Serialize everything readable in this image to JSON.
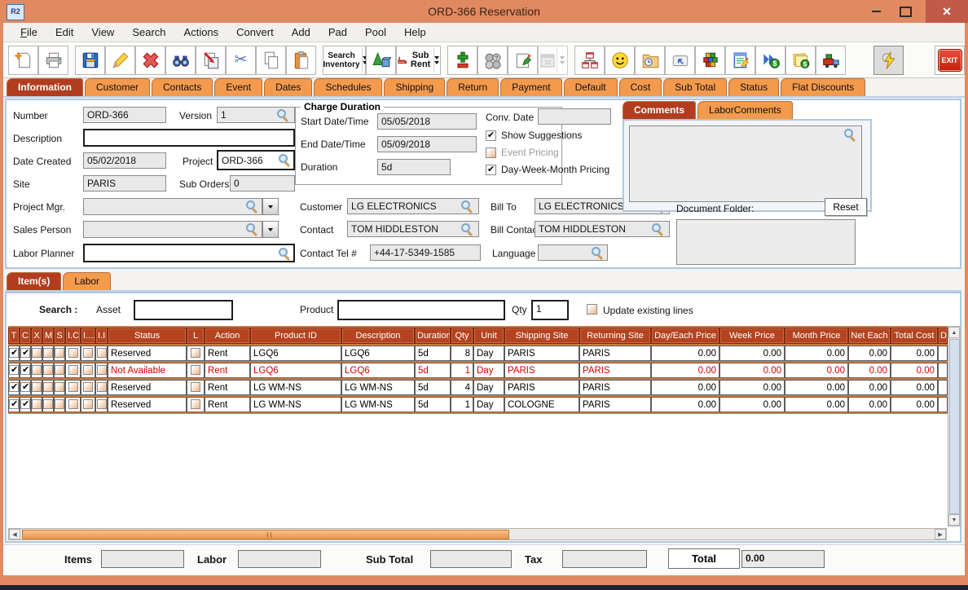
{
  "window": {
    "title": "ORD-366 Reservation",
    "icon_text": "R2",
    "controls": {
      "minimize": "minimize",
      "maximize": "maximize",
      "close": "close"
    }
  },
  "menu": {
    "items": [
      {
        "label": "File",
        "underline_first": true
      },
      {
        "label": "Edit"
      },
      {
        "label": "View"
      },
      {
        "label": "Search"
      },
      {
        "label": "Actions"
      },
      {
        "label": "Convert"
      },
      {
        "label": "Add"
      },
      {
        "label": "Pad"
      },
      {
        "label": "Pool"
      },
      {
        "label": "Help"
      }
    ]
  },
  "toolbar": {
    "search_inventory_line1": "Search",
    "search_inventory_line2": "Inventory",
    "sub_rent": "Sub Rent",
    "exit": "EXIT"
  },
  "tabs": {
    "active": "Information",
    "items": [
      "Information",
      "Customer",
      "Contacts",
      "Event",
      "Dates",
      "Schedules",
      "Shipping",
      "Return",
      "Payment",
      "Default",
      "Cost",
      "Sub Total",
      "Status",
      "Flat Discounts"
    ]
  },
  "info": {
    "number": {
      "label": "Number",
      "value": "ORD-366"
    },
    "version": {
      "label": "Version",
      "value": "1"
    },
    "description": {
      "label": "Description",
      "value": ""
    },
    "date_created": {
      "label": "Date Created",
      "value": "05/02/2018"
    },
    "project": {
      "label": "Project",
      "value": "ORD-366"
    },
    "site": {
      "label": "Site",
      "value": "PARIS"
    },
    "sub_orders": {
      "label": "Sub Orders",
      "value": "0"
    },
    "project_mgr": {
      "label": "Project Mgr.",
      "value": ""
    },
    "sales_person": {
      "label": "Sales Person",
      "value": ""
    },
    "labor_planner": {
      "label": "Labor Planner",
      "value": ""
    },
    "charge_duration": {
      "title": "Charge Duration",
      "start": {
        "label": "Start Date/Time",
        "value": "05/05/2018"
      },
      "end": {
        "label": "End Date/Time",
        "value": "05/09/2018"
      },
      "duration": {
        "label": "Duration",
        "value": "5d"
      }
    },
    "conv_date": {
      "label": "Conv. Date",
      "value": ""
    },
    "pricing_checks": [
      {
        "label": "Show Suggestions",
        "checked": true,
        "disabled": false
      },
      {
        "label": "Event Pricing",
        "checked": false,
        "disabled": true
      },
      {
        "label": "Day-Week-Month Pricing",
        "checked": true,
        "disabled": false
      }
    ],
    "customer": {
      "label": "Customer",
      "value": "LG ELECTRONICS"
    },
    "contact": {
      "label": "Contact",
      "value": "TOM HIDDLESTON"
    },
    "contact_tel": {
      "label": "Contact Tel #",
      "value": "+44-17-5349-1585"
    },
    "bill_to": {
      "label": "Bill To",
      "value": "LG ELECTRONICS"
    },
    "bill_contact": {
      "label": "Bill Contact",
      "value": "TOM HIDDLESTON"
    },
    "language": {
      "label": "Language",
      "value": ""
    },
    "comments_tabs": {
      "active": "Comments",
      "items": [
        "Comments",
        "LaborComments"
      ]
    },
    "comments_value": "",
    "document_folder": {
      "label": "Document Folder:",
      "reset": "Reset",
      "value": ""
    }
  },
  "items_section": {
    "tabs": {
      "active": "Item(s)",
      "items": [
        "Item(s)",
        "Labor"
      ]
    },
    "search": {
      "label": "Search :",
      "asset_label": "Asset",
      "asset_value": "",
      "product_label": "Product",
      "product_value": "",
      "qty_label": "Qty",
      "qty_value": "1",
      "update_label": "Update existing lines",
      "update_checked": false
    }
  },
  "items_table": {
    "checkbox_columns": [
      "T",
      "C",
      "X",
      "M",
      "S",
      "I.C",
      "I....",
      "I.I"
    ],
    "columns": [
      "Status",
      "L",
      "Action",
      "Product ID",
      "Description",
      "Duration",
      "Qty",
      "Unit",
      "Shipping Site",
      "Returning Site",
      "Day/Each Price",
      "Week Price",
      "Month Price",
      "Net Each",
      "Total Cost",
      "Di"
    ],
    "rows": [
      {
        "checks": [
          true,
          true,
          false,
          false,
          false,
          false,
          false,
          false
        ],
        "status": "Reserved",
        "l_checked": false,
        "action": "Rent",
        "product_id": "LGQ6",
        "description": "LGQ6",
        "duration": "5d",
        "qty": "8",
        "unit": "Day",
        "shipping_site": "PARIS",
        "returning_site": "PARIS",
        "day_each_price": "0.00",
        "week_price": "0.00",
        "month_price": "0.00",
        "net_each": "0.00",
        "total_cost": "0.00",
        "style": "normal"
      },
      {
        "checks": [
          true,
          true,
          false,
          false,
          false,
          false,
          false,
          false
        ],
        "status": "Not Available",
        "l_checked": false,
        "action": "Rent",
        "product_id": "LGQ6",
        "description": "LGQ6",
        "duration": "5d",
        "qty": "1",
        "unit": "Day",
        "shipping_site": "PARIS",
        "returning_site": "PARIS",
        "day_each_price": "0.00",
        "week_price": "0.00",
        "month_price": "0.00",
        "net_each": "0.00",
        "total_cost": "0.00",
        "style": "unavailable"
      },
      {
        "checks": [
          true,
          true,
          false,
          false,
          false,
          false,
          false,
          false
        ],
        "status": "Reserved",
        "l_checked": false,
        "action": "Rent",
        "product_id": "LG WM-NS",
        "description": "LG WM-NS",
        "duration": "5d",
        "qty": "4",
        "unit": "Day",
        "shipping_site": "PARIS",
        "returning_site": "PARIS",
        "day_each_price": "0.00",
        "week_price": "0.00",
        "month_price": "0.00",
        "net_each": "0.00",
        "total_cost": "0.00",
        "style": "normal"
      },
      {
        "checks": [
          true,
          true,
          false,
          false,
          false,
          false,
          false,
          false
        ],
        "status": "Reserved",
        "l_checked": false,
        "action": "Rent",
        "product_id": "LG WM-NS",
        "description": "LG WM-NS",
        "duration": "5d",
        "qty": "1",
        "unit": "Day",
        "shipping_site": "COLOGNE",
        "returning_site": "PARIS",
        "day_each_price": "0.00",
        "week_price": "0.00",
        "month_price": "0.00",
        "net_each": "0.00",
        "total_cost": "0.00",
        "style": "selected"
      }
    ]
  },
  "totals": {
    "items_label": "Items",
    "items_value": "",
    "labor_label": "Labor",
    "labor_value": "",
    "sub_total_label": "Sub Total",
    "sub_total_value": "",
    "tax_label": "Tax",
    "tax_value": "",
    "total_label": "Total",
    "total_value": "0.00"
  }
}
